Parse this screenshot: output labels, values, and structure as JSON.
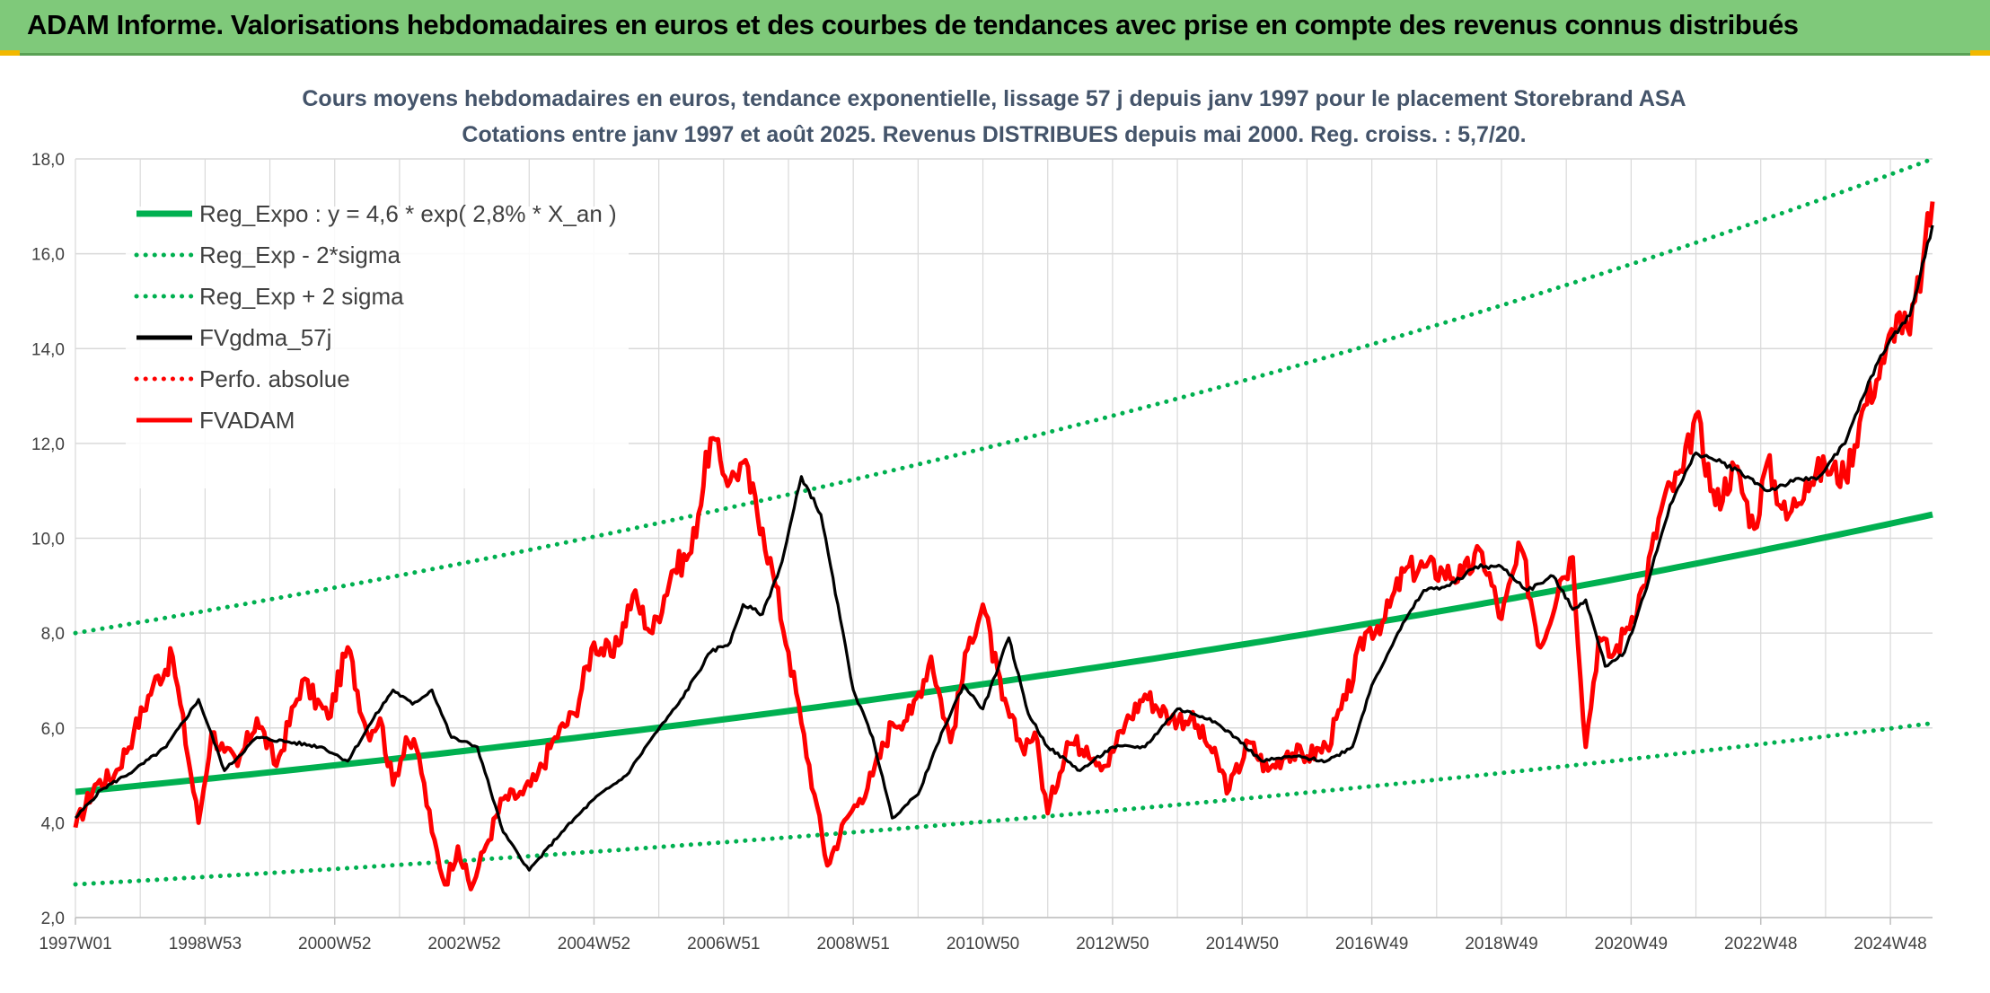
{
  "banner": {
    "text": "ADAM Informe. Valorisations hebdomadaires en euros et des courbes de tendances avec prise en compte des revenus connus distribués"
  },
  "colors": {
    "banner_bg": "#7fc97a",
    "green": "#00b050",
    "red": "#ff0000",
    "black": "#000000",
    "title": "#44546a",
    "grid": "#d9d9d9"
  },
  "chart_data": {
    "type": "line",
    "title": "Cours moyens hebdomadaires en euros, tendance exponentielle, lissage 57 j depuis janv 1997 pour le placement Storebrand ASA",
    "subtitle": "Cotations entre janv 1997 et août 2025. Revenus DISTRIBUES depuis mai 2000. Reg. croiss. : 5,7/20.",
    "xlabel": "",
    "ylabel": "",
    "x_range": [
      1997.0,
      2025.65
    ],
    "ylim": [
      2.0,
      18.0
    ],
    "y_ticks": [
      "2,0",
      "4,0",
      "6,0",
      "8,0",
      "10,0",
      "12,0",
      "14,0",
      "16,0",
      "18,0"
    ],
    "x_ticks": [
      {
        "label": "1997W01",
        "year": 1997.0
      },
      {
        "label": "1998W53",
        "year": 1999.0
      },
      {
        "label": "2000W52",
        "year": 2001.0
      },
      {
        "label": "2002W52",
        "year": 2003.0
      },
      {
        "label": "2004W52",
        "year": 2005.0
      },
      {
        "label": "2006W51",
        "year": 2007.0
      },
      {
        "label": "2008W51",
        "year": 2009.0
      },
      {
        "label": "2010W50",
        "year": 2011.0
      },
      {
        "label": "2012W50",
        "year": 2013.0
      },
      {
        "label": "2014W50",
        "year": 2015.0
      },
      {
        "label": "2016W49",
        "year": 2017.0
      },
      {
        "label": "2018W49",
        "year": 2019.0
      },
      {
        "label": "2020W49",
        "year": 2021.0
      },
      {
        "label": "2022W48",
        "year": 2023.0
      },
      {
        "label": "2024W48",
        "year": 2025.0
      }
    ],
    "grid": true,
    "legend_position": "top-left",
    "series": [
      {
        "name": "Reg_Expo : y = 4,6 * exp( 2,8% *  X_an )",
        "color": "#00b050",
        "style": "solid",
        "x": [
          1997.0,
          2025.65
        ],
        "y": [
          4.65,
          10.5
        ],
        "kind": "exponential"
      },
      {
        "name": "Reg_Exp - 2*sigma",
        "color": "#00b050",
        "style": "dotted",
        "x": [
          1997.0,
          2025.65
        ],
        "y": [
          2.7,
          6.1
        ],
        "kind": "exponential"
      },
      {
        "name": "Reg_Exp + 2 sigma",
        "color": "#00b050",
        "style": "dotted",
        "x": [
          1997.0,
          2025.65
        ],
        "y": [
          8.0,
          18.0
        ],
        "kind": "exponential"
      },
      {
        "name": "FVgdma_57j",
        "color": "#000000",
        "style": "solid",
        "x": [
          1997.0,
          1997.4,
          1997.9,
          1998.4,
          1998.9,
          1999.3,
          1999.8,
          2000.3,
          2000.8,
          2001.2,
          2001.6,
          2001.9,
          2002.2,
          2002.5,
          2002.8,
          2003.2,
          2003.6,
          2004.0,
          2004.5,
          2005.0,
          2005.5,
          2005.9,
          2006.3,
          2006.8,
          2007.1,
          2007.3,
          2007.6,
          2007.9,
          2008.2,
          2008.5,
          2008.8,
          2009.0,
          2009.3,
          2009.6,
          2010.0,
          2010.4,
          2010.7,
          2011.0,
          2011.4,
          2011.7,
          2012.0,
          2012.5,
          2013.0,
          2013.5,
          2014.0,
          2014.5,
          2014.9,
          2015.3,
          2015.8,
          2016.3,
          2016.7,
          2017.0,
          2017.4,
          2017.8,
          2018.2,
          2018.6,
          2019.0,
          2019.4,
          2019.8,
          2020.1,
          2020.3,
          2020.6,
          2020.9,
          2021.2,
          2021.6,
          2022.0,
          2022.4,
          2022.8,
          2023.1,
          2023.5,
          2023.9,
          2024.3,
          2024.7,
          2025.0,
          2025.3,
          2025.65
        ],
        "y": [
          4.1,
          4.7,
          5.1,
          5.6,
          6.6,
          5.1,
          5.8,
          5.7,
          5.6,
          5.3,
          6.2,
          6.8,
          6.5,
          6.8,
          5.8,
          5.6,
          3.8,
          3.0,
          3.8,
          4.5,
          5.0,
          5.8,
          6.5,
          7.6,
          7.8,
          8.6,
          8.4,
          9.5,
          11.3,
          10.5,
          8.3,
          6.8,
          5.8,
          4.1,
          4.6,
          6.0,
          6.9,
          6.4,
          7.9,
          6.3,
          5.6,
          5.1,
          5.6,
          5.6,
          6.4,
          6.2,
          5.8,
          5.3,
          5.4,
          5.3,
          5.6,
          6.9,
          8.0,
          8.9,
          9.0,
          9.4,
          9.4,
          8.9,
          9.2,
          8.5,
          8.7,
          7.3,
          7.6,
          8.8,
          10.7,
          11.8,
          11.6,
          11.3,
          11.0,
          11.2,
          11.3,
          12.0,
          13.4,
          14.2,
          14.7,
          16.6
        ]
      },
      {
        "name": "Perfo. absolue",
        "color": "#ff0000",
        "style": "dotted",
        "x": [],
        "y": []
      },
      {
        "name": "FVADAM",
        "color": "#ff0000",
        "style": "solid",
        "x": [
          1997.0,
          1997.3,
          1997.6,
          1997.9,
          1998.2,
          1998.5,
          1998.9,
          1999.1,
          1999.3,
          1999.5,
          1999.8,
          2000.1,
          2000.5,
          2000.9,
          2001.2,
          2001.5,
          2001.7,
          2001.9,
          2002.1,
          2002.3,
          2002.5,
          2002.7,
          2002.9,
          2003.1,
          2003.3,
          2003.6,
          2003.9,
          2004.1,
          2004.4,
          2004.7,
          2005.0,
          2005.3,
          2005.6,
          2005.9,
          2006.2,
          2006.5,
          2006.8,
          2007.1,
          2007.3,
          2007.6,
          2007.8,
          2008.0,
          2008.2,
          2008.4,
          2008.6,
          2008.9,
          2009.1,
          2009.3,
          2009.6,
          2009.9,
          2010.2,
          2010.5,
          2010.8,
          2011.0,
          2011.3,
          2011.6,
          2011.8,
          2012.0,
          2012.3,
          2012.6,
          2012.9,
          2013.2,
          2013.5,
          2013.9,
          2014.2,
          2014.5,
          2014.8,
          2015.1,
          2015.4,
          2015.7,
          2016.0,
          2016.3,
          2016.6,
          2016.9,
          2017.2,
          2017.5,
          2017.8,
          2018.1,
          2018.4,
          2018.7,
          2019.0,
          2019.3,
          2019.6,
          2019.9,
          2020.1,
          2020.3,
          2020.5,
          2020.7,
          2020.9,
          2021.2,
          2021.5,
          2021.8,
          2022.0,
          2022.3,
          2022.6,
          2022.9,
          2023.1,
          2023.4,
          2023.7,
          2024.0,
          2024.3,
          2024.6,
          2024.9,
          2025.1,
          2025.3,
          2025.5,
          2025.65
        ],
        "y": [
          3.9,
          4.8,
          5.0,
          5.9,
          6.9,
          7.5,
          4.0,
          5.9,
          5.5,
          5.2,
          6.2,
          5.2,
          7.0,
          6.2,
          7.7,
          5.9,
          6.2,
          4.8,
          5.8,
          5.4,
          3.8,
          2.7,
          3.5,
          2.6,
          3.4,
          4.5,
          4.6,
          4.9,
          5.8,
          6.3,
          7.8,
          7.5,
          8.8,
          8.0,
          9.3,
          9.7,
          12.1,
          11.2,
          11.6,
          10.2,
          9.0,
          7.6,
          6.1,
          4.6,
          3.1,
          4.1,
          4.5,
          5.0,
          6.1,
          6.3,
          7.5,
          5.7,
          7.9,
          8.6,
          6.6,
          5.6,
          5.9,
          4.2,
          5.7,
          5.6,
          5.2,
          6.1,
          6.7,
          6.2,
          6.2,
          5.6,
          4.7,
          5.7,
          5.1,
          5.5,
          5.4,
          5.6,
          6.6,
          8.0,
          8.3,
          9.3,
          9.4,
          9.3,
          9.2,
          9.7,
          8.3,
          9.8,
          7.7,
          9.1,
          9.6,
          5.6,
          7.9,
          7.5,
          8.0,
          9.0,
          10.8,
          11.4,
          12.6,
          10.7,
          11.5,
          10.2,
          11.6,
          10.4,
          11.2,
          11.5,
          11.3,
          12.8,
          13.7,
          14.7,
          14.3,
          15.8,
          17.1
        ]
      }
    ]
  }
}
